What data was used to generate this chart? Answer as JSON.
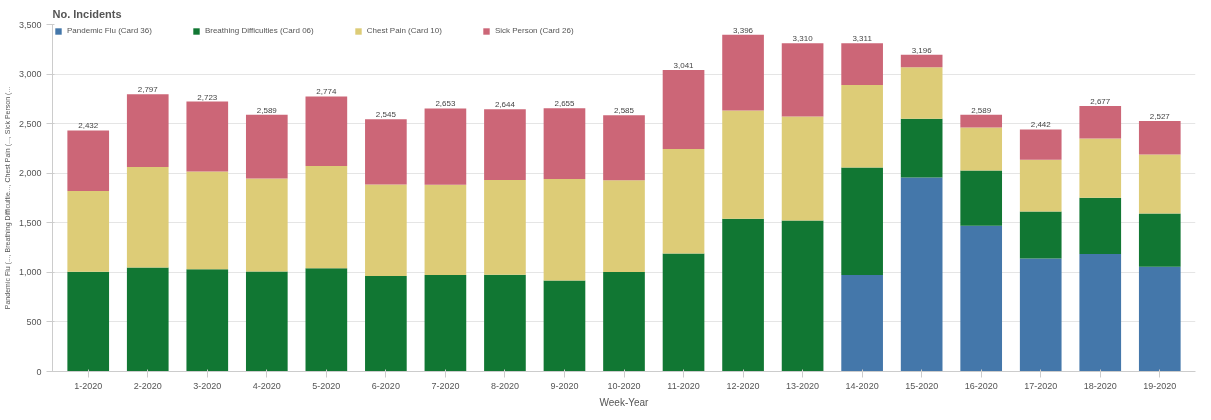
{
  "chart_data": {
    "type": "bar",
    "title": "No. Incidents",
    "xlabel": "Week-Year",
    "ylabel": "Pandemic Flu (..., Breathing Difficultie..., Chest Pain (..., Sick Person (...",
    "categories": [
      "1-2020",
      "2-2020",
      "3-2020",
      "4-2020",
      "5-2020",
      "6-2020",
      "7-2020",
      "8-2020",
      "9-2020",
      "10-2020",
      "11-2020",
      "12-2020",
      "13-2020",
      "14-2020",
      "15-2020",
      "16-2020",
      "17-2020",
      "18-2020",
      "19-2020"
    ],
    "stacked": true,
    "series": [
      {
        "name": "Pandemic Flu (Card 36)",
        "color": "#4477aa",
        "values": [
          null,
          null,
          null,
          null,
          null,
          null,
          null,
          null,
          null,
          null,
          null,
          null,
          null,
          973,
          1958,
          1470,
          1141,
          1185,
          1057
        ]
      },
      {
        "name": "Breathing Difficulties (Card 06)",
        "color": "#117733",
        "values": [
          1005,
          1050,
          1032,
          1009,
          1041,
          964,
          973,
          977,
          919,
          1004,
          1190,
          1540,
          1522,
          1085,
          591,
          557,
          474,
          567,
          536
        ]
      },
      {
        "name": "Chest Pain (Card 10)",
        "color": "#ddcc77",
        "values": [
          815,
          1013,
          986,
          937,
          1031,
          923,
          910,
          955,
          1022,
          925,
          1053,
          1093,
          1049,
          831,
          520,
          433,
          522,
          599,
          597
        ]
      },
      {
        "name": "Sick Person (Card 26)",
        "color": "#cc6677",
        "values": [
          612,
          734,
          705,
          643,
          702,
          658,
          770,
          712,
          714,
          656,
          798,
          763,
          739,
          422,
          127,
          129,
          305,
          326,
          337
        ]
      }
    ],
    "totals": [
      "2,432",
      "2,797",
      "2,723",
      "2,589",
      "2,774",
      "2,545",
      "2,653",
      "2,644",
      "2,655",
      "2,585",
      "3,041",
      "3,396",
      "3,310",
      "3,311",
      "3,196",
      "2,589",
      "2,442",
      "2,677",
      "2,527"
    ],
    "ylim": [
      0,
      3500
    ],
    "yticks": [
      0,
      {
        "value": 500,
        "label": "500"
      },
      {
        "value": 1000,
        "label": "1,000"
      },
      {
        "value": 1500,
        "label": "1,500"
      },
      {
        "value": 2000,
        "label": "2,000"
      },
      {
        "value": 2500,
        "label": "2,500"
      },
      {
        "value": 3000,
        "label": "3,000"
      },
      {
        "value": 3500,
        "label": "3,500"
      }
    ],
    "grid": "y",
    "legend": "top left"
  }
}
